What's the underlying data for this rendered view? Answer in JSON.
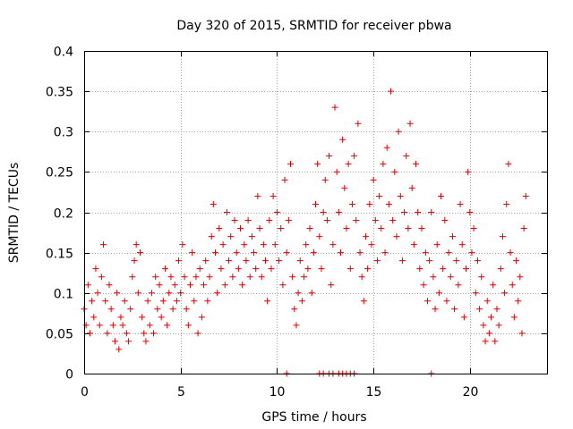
{
  "chart_data": {
    "type": "scatter",
    "title": "Day 320 of 2015, SRMTID for receiver pbwa",
    "xlabel": "GPS time / hours",
    "ylabel": "SRMTID / TECUs",
    "xlim": [
      0,
      24
    ],
    "ylim": [
      0,
      0.4
    ],
    "xticks": [
      0,
      5,
      10,
      15,
      20
    ],
    "xtick_labels": [
      "0",
      "5",
      "10",
      "15",
      "20"
    ],
    "yticks": [
      0,
      0.05,
      0.1,
      0.15,
      0.2,
      0.25,
      0.3,
      0.35,
      0.4
    ],
    "ytick_labels": [
      "0",
      "0.05",
      "0.1",
      "0.15",
      "0.2",
      "0.25",
      "0.3",
      "0.35",
      "0.4"
    ],
    "grid": true,
    "marker": "+",
    "marker_color": "#dd0000",
    "series": [
      {
        "name": "SRMTID",
        "points": [
          [
            0.0,
            0.08
          ],
          [
            0.1,
            0.06
          ],
          [
            0.2,
            0.11
          ],
          [
            0.3,
            0.05
          ],
          [
            0.4,
            0.09
          ],
          [
            0.5,
            0.07
          ],
          [
            0.6,
            0.13
          ],
          [
            0.7,
            0.1
          ],
          [
            0.8,
            0.06
          ],
          [
            0.9,
            0.12
          ],
          [
            1.0,
            0.16
          ],
          [
            1.1,
            0.09
          ],
          [
            1.2,
            0.05
          ],
          [
            1.3,
            0.11
          ],
          [
            1.4,
            0.08
          ],
          [
            1.5,
            0.06
          ],
          [
            1.6,
            0.04
          ],
          [
            1.7,
            0.1
          ],
          [
            1.8,
            0.03
          ],
          [
            1.9,
            0.07
          ],
          [
            2.0,
            0.06
          ],
          [
            2.1,
            0.09
          ],
          [
            2.2,
            0.05
          ],
          [
            2.3,
            0.04
          ],
          [
            2.4,
            0.08
          ],
          [
            2.5,
            0.12
          ],
          [
            2.6,
            0.14
          ],
          [
            2.7,
            0.16
          ],
          [
            2.8,
            0.1
          ],
          [
            2.9,
            0.15
          ],
          [
            3.0,
            0.07
          ],
          [
            3.1,
            0.05
          ],
          [
            3.2,
            0.04
          ],
          [
            3.3,
            0.09
          ],
          [
            3.4,
            0.06
          ],
          [
            3.5,
            0.1
          ],
          [
            3.6,
            0.05
          ],
          [
            3.7,
            0.12
          ],
          [
            3.8,
            0.08
          ],
          [
            3.9,
            0.11
          ],
          [
            4.0,
            0.07
          ],
          [
            4.1,
            0.09
          ],
          [
            4.2,
            0.13
          ],
          [
            4.3,
            0.06
          ],
          [
            4.4,
            0.1
          ],
          [
            4.5,
            0.12
          ],
          [
            4.6,
            0.08
          ],
          [
            4.7,
            0.11
          ],
          [
            4.8,
            0.09
          ],
          [
            4.9,
            0.14
          ],
          [
            5.0,
            0.1
          ],
          [
            5.1,
            0.16
          ],
          [
            5.2,
            0.12
          ],
          [
            5.3,
            0.08
          ],
          [
            5.4,
            0.06
          ],
          [
            5.5,
            0.11
          ],
          [
            5.6,
            0.15
          ],
          [
            5.7,
            0.09
          ],
          [
            5.8,
            0.12
          ],
          [
            5.9,
            0.05
          ],
          [
            6.0,
            0.13
          ],
          [
            6.1,
            0.07
          ],
          [
            6.2,
            0.11
          ],
          [
            6.3,
            0.14
          ],
          [
            6.4,
            0.09
          ],
          [
            6.5,
            0.12
          ],
          [
            6.6,
            0.17
          ],
          [
            6.7,
            0.21
          ],
          [
            6.8,
            0.15
          ],
          [
            6.9,
            0.1
          ],
          [
            7.0,
            0.18
          ],
          [
            7.1,
            0.13
          ],
          [
            7.2,
            0.16
          ],
          [
            7.3,
            0.11
          ],
          [
            7.4,
            0.2
          ],
          [
            7.5,
            0.14
          ],
          [
            7.6,
            0.17
          ],
          [
            7.7,
            0.12
          ],
          [
            7.8,
            0.19
          ],
          [
            7.9,
            0.15
          ],
          [
            8.0,
            0.13
          ],
          [
            8.1,
            0.18
          ],
          [
            8.2,
            0.11
          ],
          [
            8.3,
            0.16
          ],
          [
            8.4,
            0.14
          ],
          [
            8.5,
            0.19
          ],
          [
            8.6,
            0.12
          ],
          [
            8.7,
            0.17
          ],
          [
            8.8,
            0.15
          ],
          [
            8.9,
            0.13
          ],
          [
            9.0,
            0.22
          ],
          [
            9.1,
            0.18
          ],
          [
            9.2,
            0.12
          ],
          [
            9.3,
            0.16
          ],
          [
            9.4,
            0.14
          ],
          [
            9.5,
            0.09
          ],
          [
            9.6,
            0.19
          ],
          [
            9.7,
            0.13
          ],
          [
            9.8,
            0.22
          ],
          [
            9.9,
            0.16
          ],
          [
            10.0,
            0.2
          ],
          [
            10.1,
            0.14
          ],
          [
            10.2,
            0.18
          ],
          [
            10.3,
            0.11
          ],
          [
            10.4,
            0.24
          ],
          [
            10.5,
            0.15
          ],
          [
            10.6,
            0.19
          ],
          [
            10.7,
            0.26
          ],
          [
            10.8,
            0.12
          ],
          [
            10.9,
            0.08
          ],
          [
            11.0,
            0.06
          ],
          [
            11.1,
            0.1
          ],
          [
            11.2,
            0.14
          ],
          [
            11.3,
            0.09
          ],
          [
            11.4,
            0.12
          ],
          [
            11.5,
            0.16
          ],
          [
            11.6,
            0.13
          ],
          [
            11.7,
            0.18
          ],
          [
            11.8,
            0.1
          ],
          [
            11.9,
            0.15
          ],
          [
            12.0,
            0.21
          ],
          [
            12.1,
            0.26
          ],
          [
            12.2,
            0.17
          ],
          [
            12.3,
            0.13
          ],
          [
            12.4,
            0.2
          ],
          [
            12.5,
            0.24
          ],
          [
            12.6,
            0.19
          ],
          [
            12.7,
            0.27
          ],
          [
            12.8,
            0.11
          ],
          [
            12.9,
            0.16
          ],
          [
            13.0,
            0.33
          ],
          [
            13.1,
            0.25
          ],
          [
            13.2,
            0.2
          ],
          [
            13.3,
            0.15
          ],
          [
            13.4,
            0.29
          ],
          [
            13.5,
            0.23
          ],
          [
            13.6,
            0.18
          ],
          [
            13.7,
            0.26
          ],
          [
            13.8,
            0.13
          ],
          [
            13.9,
            0.21
          ],
          [
            14.0,
            0.27
          ],
          [
            14.1,
            0.19
          ],
          [
            14.2,
            0.31
          ],
          [
            14.3,
            0.15
          ],
          [
            14.4,
            0.12
          ],
          [
            14.5,
            0.09
          ],
          [
            14.6,
            0.17
          ],
          [
            14.7,
            0.13
          ],
          [
            14.8,
            0.21
          ],
          [
            14.9,
            0.16
          ],
          [
            15.0,
            0.24
          ],
          [
            15.1,
            0.19
          ],
          [
            15.2,
            0.14
          ],
          [
            15.3,
            0.22
          ],
          [
            15.4,
            0.18
          ],
          [
            15.5,
            0.26
          ],
          [
            15.6,
            0.15
          ],
          [
            15.7,
            0.28
          ],
          [
            15.8,
            0.21
          ],
          [
            15.9,
            0.35
          ],
          [
            16.0,
            0.19
          ],
          [
            16.1,
            0.25
          ],
          [
            16.2,
            0.17
          ],
          [
            16.3,
            0.3
          ],
          [
            16.4,
            0.22
          ],
          [
            16.5,
            0.14
          ],
          [
            16.6,
            0.2
          ],
          [
            16.7,
            0.27
          ],
          [
            16.8,
            0.18
          ],
          [
            16.9,
            0.31
          ],
          [
            17.0,
            0.23
          ],
          [
            17.1,
            0.16
          ],
          [
            17.2,
            0.26
          ],
          [
            17.3,
            0.2
          ],
          [
            17.4,
            0.13
          ],
          [
            17.5,
            0.18
          ],
          [
            17.6,
            0.11
          ],
          [
            17.7,
            0.15
          ],
          [
            17.8,
            0.09
          ],
          [
            17.9,
            0.14
          ],
          [
            18.0,
            0.2
          ],
          [
            18.1,
            0.12
          ],
          [
            18.2,
            0.08
          ],
          [
            18.3,
            0.16
          ],
          [
            18.4,
            0.1
          ],
          [
            18.5,
            0.22
          ],
          [
            18.6,
            0.13
          ],
          [
            18.7,
            0.19
          ],
          [
            18.8,
            0.09
          ],
          [
            18.9,
            0.15
          ],
          [
            19.0,
            0.12
          ],
          [
            19.1,
            0.17
          ],
          [
            19.2,
            0.08
          ],
          [
            19.3,
            0.14
          ],
          [
            19.4,
            0.11
          ],
          [
            19.5,
            0.21
          ],
          [
            19.6,
            0.16
          ],
          [
            19.7,
            0.07
          ],
          [
            19.8,
            0.13
          ],
          [
            19.9,
            0.25
          ],
          [
            20.0,
            0.2
          ],
          [
            20.1,
            0.15
          ],
          [
            20.2,
            0.18
          ],
          [
            20.3,
            0.1
          ],
          [
            20.4,
            0.14
          ],
          [
            20.5,
            0.08
          ],
          [
            20.6,
            0.12
          ],
          [
            20.7,
            0.06
          ],
          [
            20.8,
            0.04
          ],
          [
            20.9,
            0.09
          ],
          [
            21.0,
            0.05
          ],
          [
            21.1,
            0.07
          ],
          [
            21.2,
            0.11
          ],
          [
            21.3,
            0.04
          ],
          [
            21.4,
            0.08
          ],
          [
            21.5,
            0.06
          ],
          [
            21.6,
            0.13
          ],
          [
            21.7,
            0.17
          ],
          [
            21.8,
            0.1
          ],
          [
            21.9,
            0.21
          ],
          [
            22.0,
            0.26
          ],
          [
            22.1,
            0.15
          ],
          [
            22.2,
            0.11
          ],
          [
            22.3,
            0.07
          ],
          [
            22.4,
            0.14
          ],
          [
            22.5,
            0.09
          ],
          [
            22.6,
            0.12
          ],
          [
            22.7,
            0.05
          ],
          [
            22.8,
            0.18
          ],
          [
            22.9,
            0.22
          ],
          [
            10.5,
            0.0
          ],
          [
            12.2,
            0.0
          ],
          [
            12.4,
            0.0
          ],
          [
            12.7,
            0.0
          ],
          [
            12.9,
            0.0
          ],
          [
            13.2,
            0.0
          ],
          [
            13.4,
            0.0
          ],
          [
            13.6,
            0.0
          ],
          [
            13.8,
            0.0
          ],
          [
            14.0,
            0.0
          ],
          [
            18.0,
            0.0
          ]
        ]
      }
    ]
  }
}
